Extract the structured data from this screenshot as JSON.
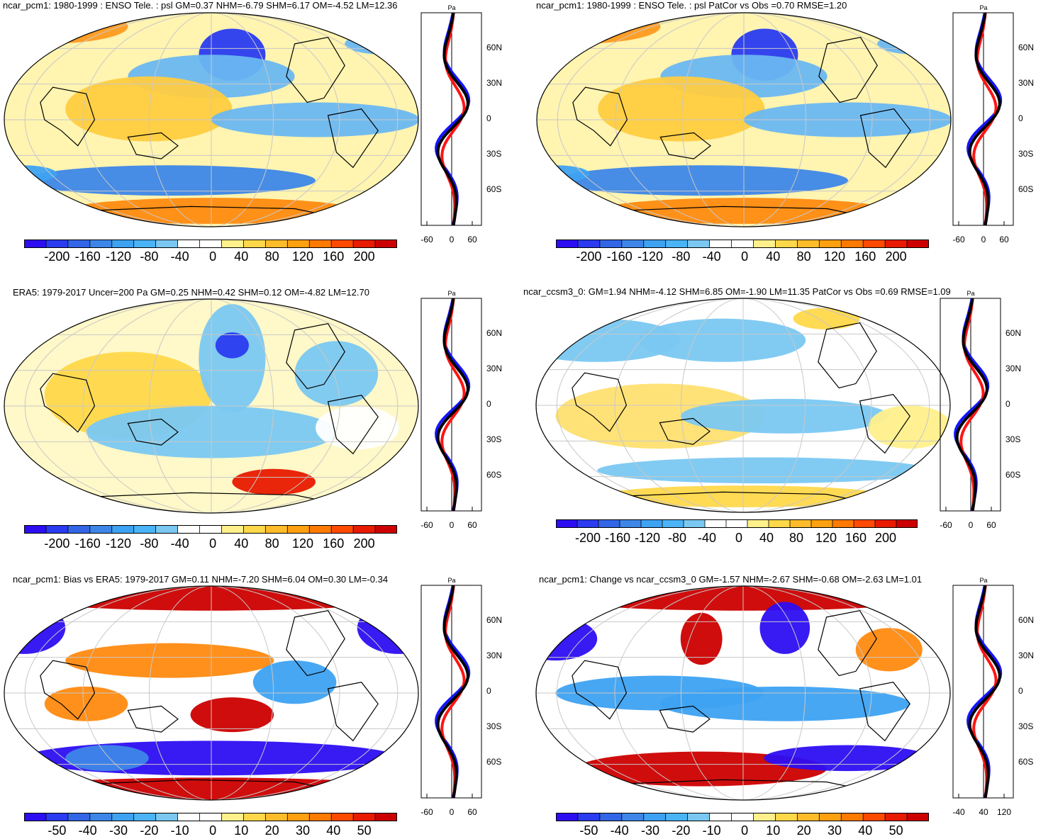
{
  "colors": {
    "land_outline": "#000000",
    "grid": "#c8c8c8",
    "blue_line": "#1414ff",
    "red_line": "#ff1414",
    "black_line": "#000000"
  },
  "colorbar_colors": [
    "#2d0ef2",
    "#2a3bf0",
    "#3366e6",
    "#3d86e8",
    "#3ea2f2",
    "#4ab4f7",
    "#7ac8f2",
    "#ffffff",
    "#ffffff",
    "#fff08c",
    "#ffd84a",
    "#ffbc2a",
    "#ffa010",
    "#ff7a00",
    "#ff4a00",
    "#e81a00",
    "#cc0000"
  ],
  "profile_axis": {
    "unit": "Pa",
    "lat_labels": [
      "60N",
      "30N",
      "0",
      "30S",
      "60S"
    ]
  },
  "panels": [
    {
      "id": "p1",
      "title": "ncar_pcm1: 1980-1999 : ENSO Tele. : psl GM=0.37 NHM=-6.79 SHM=6.17 OM=-4.52 LM=12.36",
      "colorbar_labels": [
        "-200",
        "-160",
        "-120",
        "-80",
        "-40",
        "0",
        "40",
        "80",
        "120",
        "160",
        "200"
      ],
      "profile_x_labels": [
        "-60",
        "0",
        "60"
      ]
    },
    {
      "id": "p2",
      "title": "ncar_pcm1: 1980-1999 : ENSO Tele. : psl PatCor vs Obs =0.70 RMSE=1.20",
      "colorbar_labels": [
        "-200",
        "-160",
        "-120",
        "-80",
        "-40",
        "0",
        "40",
        "80",
        "120",
        "160",
        "200"
      ],
      "profile_x_labels": [
        "-60",
        "0",
        "60"
      ]
    },
    {
      "id": "p3",
      "title": "ERA5: 1979-2017 Uncer=200 Pa GM=0.25 NHM=0.42 SHM=0.12 OM=-4.82 LM=12.70",
      "colorbar_labels": [
        "-200",
        "-160",
        "-120",
        "-80",
        "-40",
        "0",
        "40",
        "80",
        "120",
        "160",
        "200"
      ],
      "profile_x_labels": [
        "-60",
        "0",
        "60"
      ]
    },
    {
      "id": "p4",
      "title": "ncar_ccsm3_0: GM=1.94 NHM=-4.12 SHM=6.85 OM=-1.90 LM=11.35 PatCor vs Obs =0.69 RMSE=1.09",
      "colorbar_labels": [
        "-200",
        "-160",
        "-120",
        "-80",
        "-40",
        "0",
        "40",
        "80",
        "120",
        "160",
        "200"
      ],
      "profile_x_labels": [
        "-60",
        "0",
        "60"
      ]
    },
    {
      "id": "p5",
      "title": "ncar_pcm1: Bias vs ERA5: 1979-2017 GM=0.11 NHM=-7.20 SHM=6.04 OM=0.30 LM=-0.34",
      "colorbar_labels": [
        "-50",
        "-40",
        "-30",
        "-20",
        "-10",
        "0",
        "10",
        "20",
        "30",
        "40",
        "50"
      ],
      "profile_x_labels": [
        "-60",
        "0",
        "60"
      ]
    },
    {
      "id": "p6",
      "title": "ncar_pcm1: Change vs ncar_ccsm3_0 GM=-1.57 NHM=-2.67 SHM=-0.68 OM=-2.63 LM=1.01",
      "colorbar_labels": [
        "-50",
        "-40",
        "-30",
        "-20",
        "-10",
        "0",
        "10",
        "20",
        "30",
        "40",
        "50"
      ],
      "profile_x_labels": [
        "-40",
        "40",
        "120"
      ]
    }
  ]
}
